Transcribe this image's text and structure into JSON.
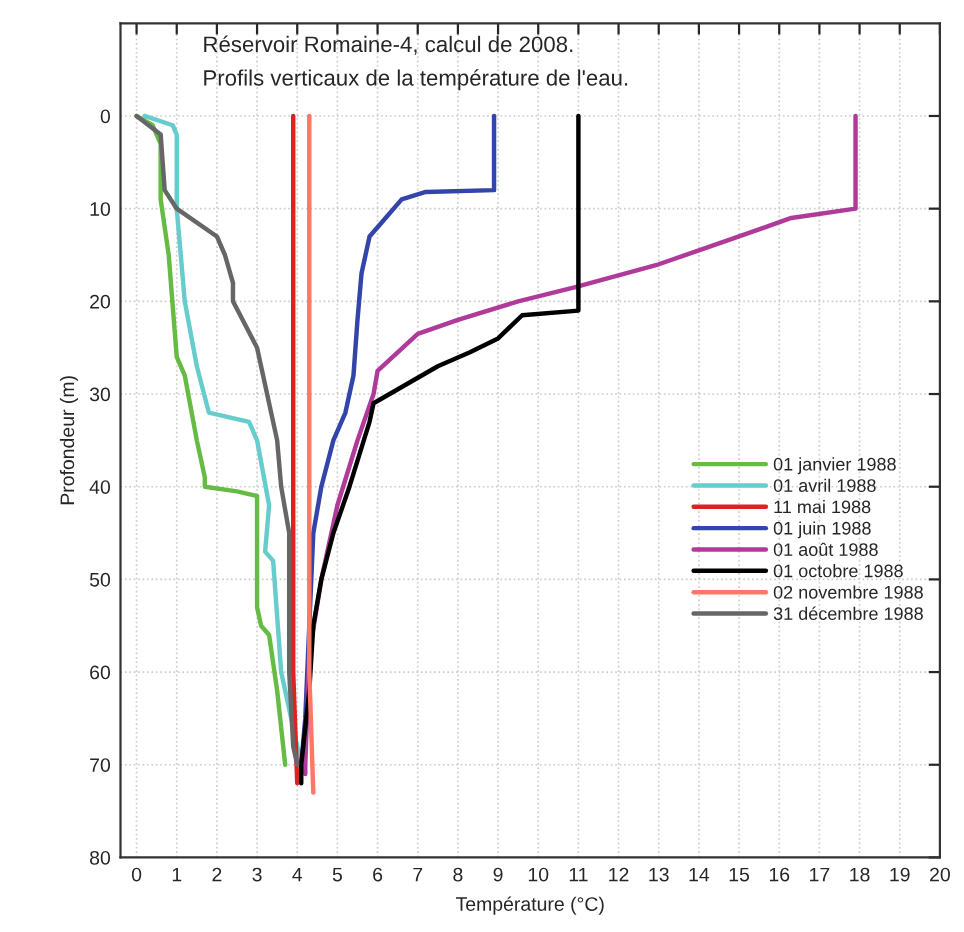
{
  "chart_data": {
    "type": "line",
    "title": "Réservoir Romaine-4, calcul de 2008.",
    "subtitle": "Profils verticaux de la température de l'eau.",
    "xlabel": "Température (°C)",
    "ylabel": "Profondeur (m)",
    "xlim": [
      -0.4,
      20
    ],
    "xticks": [
      0,
      1,
      2,
      3,
      4,
      5,
      6,
      7,
      8,
      9,
      10,
      11,
      12,
      13,
      14,
      15,
      16,
      17,
      18,
      19,
      20
    ],
    "ylim": [
      80,
      -10
    ],
    "yticks": [
      0,
      10,
      20,
      30,
      40,
      50,
      60,
      70,
      80
    ],
    "grid": true,
    "legend": "right",
    "marker": "none",
    "line_style": "solid",
    "series": [
      {
        "name": "01 janvier 1988",
        "color": "#66bb44",
        "x": [
          0.0,
          0.4,
          0.6,
          0.6,
          0.8,
          1.0,
          1.2,
          1.5,
          1.7,
          1.7,
          2.5,
          3.0,
          3.0,
          3.0,
          3.1,
          3.3,
          3.5,
          3.7
        ],
        "values": [
          0,
          1,
          3,
          9,
          15,
          26,
          28,
          35,
          39,
          40,
          40.5,
          41,
          45,
          53,
          55,
          56,
          62,
          70
        ]
      },
      {
        "name": "01 avril 1988",
        "color": "#66cccc",
        "x": [
          0.2,
          0.9,
          1.0,
          1.0,
          1.2,
          1.5,
          1.8,
          2.8,
          3.0,
          3.3,
          3.2,
          3.4,
          3.6,
          4.1,
          4.1
        ],
        "values": [
          0,
          1,
          2,
          10,
          20,
          27,
          32,
          33,
          35,
          42,
          47,
          48,
          60,
          70,
          71
        ]
      },
      {
        "name": "11 mai 1988",
        "color": "#dd2222",
        "x": [
          3.9,
          3.9,
          4.0
        ],
        "values": [
          0,
          60,
          72
        ]
      },
      {
        "name": "01 juin 1988",
        "color": "#3344aa",
        "x": [
          8.9,
          8.9,
          7.2,
          6.6,
          6.2,
          5.8,
          5.6,
          5.5,
          5.4,
          5.2,
          4.9,
          4.6,
          4.4,
          4.3,
          4.2,
          4.1
        ],
        "values": [
          0,
          8,
          8.2,
          9,
          11,
          13,
          17,
          22,
          28,
          32,
          35,
          40,
          45,
          55,
          65,
          70
        ]
      },
      {
        "name": "01 août 1988",
        "color": "#b03a9a",
        "x": [
          17.9,
          17.9,
          16.3,
          15.0,
          13.0,
          10.9,
          9.5,
          8.0,
          7.0,
          6.0,
          5.9,
          5.5,
          5.0,
          4.6,
          4.3,
          4.2,
          4.2
        ],
        "values": [
          0,
          10,
          11,
          13,
          16,
          18.5,
          20,
          22,
          23.5,
          27.5,
          30,
          35,
          42,
          50,
          58,
          70,
          71
        ]
      },
      {
        "name": "01 octobre 1988",
        "color": "#000000",
        "x": [
          11.0,
          11.0,
          9.6,
          9.0,
          8.3,
          7.5,
          6.7,
          5.9,
          5.8,
          5.3,
          4.9,
          4.6,
          4.4,
          4.3,
          4.1,
          4.1
        ],
        "values": [
          0,
          21,
          21.5,
          24,
          25.5,
          27,
          29,
          31,
          33,
          40,
          45,
          50,
          55,
          62,
          70,
          72
        ]
      },
      {
        "name": "02 novembre 1988",
        "color": "#ff7766",
        "x": [
          4.3,
          4.3,
          4.4
        ],
        "values": [
          0,
          60,
          73
        ]
      },
      {
        "name": "31 décembre 1988",
        "color": "#666666",
        "x": [
          0.0,
          0.6,
          0.7,
          1.0,
          2.0,
          2.2,
          2.4,
          2.4,
          3.0,
          3.1,
          3.5,
          3.6,
          3.8,
          3.8,
          3.9,
          4.0
        ],
        "values": [
          0,
          2,
          8,
          10,
          13,
          15,
          18,
          20,
          25,
          27,
          35,
          40,
          45,
          60,
          68,
          70
        ]
      }
    ]
  }
}
